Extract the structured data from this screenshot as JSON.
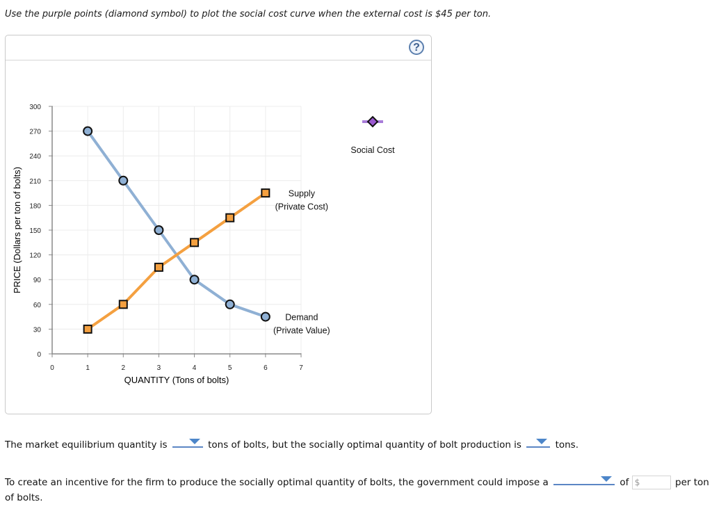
{
  "instruction": "Use the purple points (diamond symbol) to plot the social cost curve when the external cost is $45 per ton.",
  "panel": {
    "help_label": "?"
  },
  "palette": {
    "demand": "#8fb0d4",
    "supply": "#f4a040",
    "social_cost_line": "#a87cd9",
    "social_cost_marker": "#9b59d0",
    "help": "#5b7fae",
    "dropdown": "#4d86c9"
  },
  "chart_data": {
    "type": "line",
    "title": "",
    "xlabel": "QUANTITY (Tons of bolts)",
    "ylabel": "PRICE (Dollars per ton of bolts)",
    "xlim": [
      0,
      7
    ],
    "ylim": [
      0,
      300
    ],
    "x_ticks": [
      0,
      1,
      2,
      3,
      4,
      5,
      6,
      7
    ],
    "y_ticks": [
      0,
      30,
      60,
      90,
      120,
      150,
      180,
      210,
      240,
      270,
      300
    ],
    "grid": true,
    "series": [
      {
        "name": "Demand (Private Value)",
        "label_lines": [
          "Demand",
          "(Private Value)"
        ],
        "marker": "circle",
        "x": [
          1,
          2,
          3,
          4,
          5,
          6
        ],
        "y": [
          270,
          210,
          150,
          90,
          60,
          45
        ]
      },
      {
        "name": "Supply (Private Cost)",
        "label_lines": [
          "Supply",
          "(Private Cost)"
        ],
        "marker": "square",
        "x": [
          1,
          2,
          3,
          4,
          5,
          6
        ],
        "y": [
          30,
          60,
          105,
          135,
          165,
          195
        ]
      }
    ],
    "palette_items": [
      {
        "name": "Social Cost",
        "marker": "diamond"
      }
    ]
  },
  "questions": {
    "q1_part1": "The market equilibrium quantity is",
    "q1_part2": "tons of bolts, but the socially optimal quantity of bolt production is",
    "q1_part3": "tons.",
    "q1_dropdown1_value": "",
    "q1_dropdown2_value": "",
    "q2_part1": "To create an incentive for the firm to produce the socially optimal quantity of bolts, the government could impose a",
    "q2_part2": "of",
    "q2_input_placeholder": "$",
    "q2_part3": "per ton",
    "q2_part4": "of bolts.",
    "q2_dropdown_value": ""
  }
}
